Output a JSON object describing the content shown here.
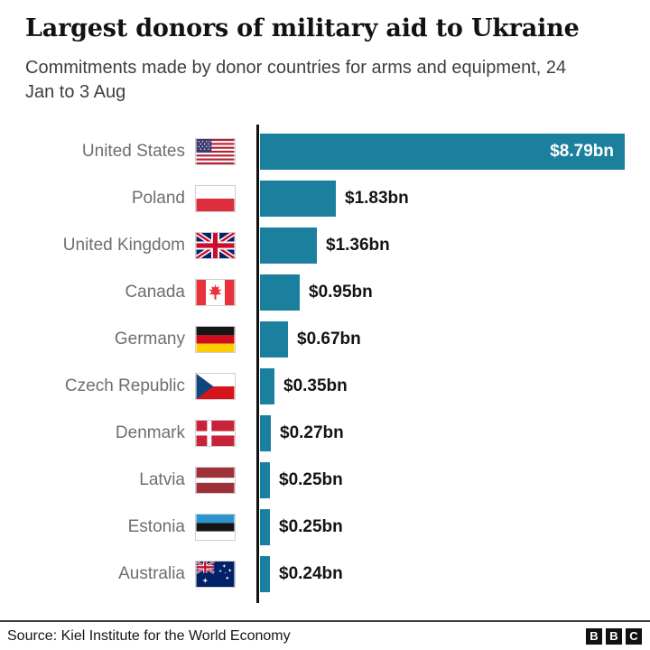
{
  "header": {
    "title": "Largest donors of military aid to Ukraine",
    "subtitle": "Commitments made by donor countries for arms and equipment, 24 Jan to 3 Aug"
  },
  "chart_data": {
    "type": "bar",
    "orientation": "horizontal",
    "title": "Largest donors of military aid to Ukraine",
    "subtitle": "Commitments made by donor countries for arms and equipment, 24 Jan to 3 Aug",
    "unit": "$bn",
    "xlim": [
      0,
      9.2
    ],
    "grid": false,
    "legend": "none",
    "bar_color": "#1b7f9e",
    "categories": [
      "United States",
      "Poland",
      "United Kingdom",
      "Canada",
      "Germany",
      "Czech Republic",
      "Denmark",
      "Latvia",
      "Estonia",
      "Australia"
    ],
    "values": [
      8.79,
      1.83,
      1.36,
      0.95,
      0.67,
      0.35,
      0.27,
      0.25,
      0.25,
      0.24
    ],
    "value_labels": [
      "$8.79bn",
      "$1.83bn",
      "$1.36bn",
      "$0.95bn",
      "$0.67bn",
      "$0.35bn",
      "$0.27bn",
      "$0.25bn",
      "$0.25bn",
      "$0.24bn"
    ],
    "flag_icons": [
      "us",
      "poland",
      "uk",
      "canada",
      "germany",
      "czech-republic",
      "denmark",
      "latvia",
      "estonia",
      "australia"
    ]
  },
  "footer": {
    "source": "Source: Kiel Institute for the World Economy",
    "logo_letters": [
      "B",
      "B",
      "C"
    ]
  }
}
